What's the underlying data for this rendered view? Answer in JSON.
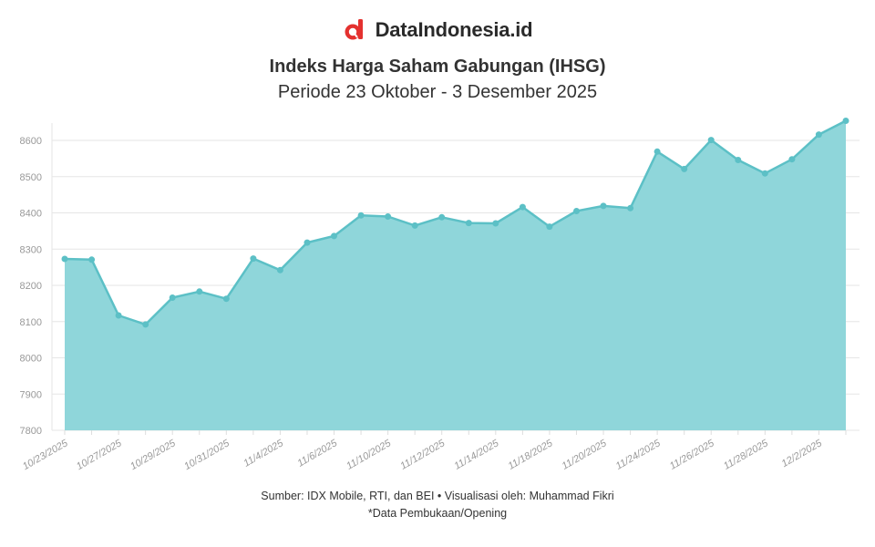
{
  "brand": {
    "name": "DataIndonesia.id",
    "logo_icon": "d-letter-magnifier-icon",
    "accent": "#e4312f"
  },
  "header": {
    "title": "Indeks Harga Saham Gabungan (IHSG)",
    "subtitle": "Periode 23 Oktober - 3 Desember 2025"
  },
  "footer": {
    "source": "Sumber: IDX Mobile, RTI, dan BEI • Visualisasi oleh: Muhammad Fikri",
    "note": "*Data Pembukaan/Opening"
  },
  "chart_data": {
    "type": "area",
    "title": "Indeks Harga Saham Gabungan (IHSG)",
    "subtitle": "Periode 23 Oktober - 3 Desember 2025",
    "xlabel": "",
    "ylabel": "",
    "ylim": [
      7800,
      8650
    ],
    "yticks": [
      7800,
      7900,
      8000,
      8100,
      8200,
      8300,
      8400,
      8500,
      8600
    ],
    "grid": true,
    "legend": "none",
    "fill_color": "#8fd6da",
    "line_color": "#5cc0c6",
    "x": [
      "10/23/2025",
      "10/24/2025",
      "10/27/2025",
      "10/28/2025",
      "10/29/2025",
      "10/30/2025",
      "10/31/2025",
      "11/3/2025",
      "11/4/2025",
      "11/5/2025",
      "11/6/2025",
      "11/7/2025",
      "11/10/2025",
      "11/11/2025",
      "11/12/2025",
      "11/13/2025",
      "11/14/2025",
      "11/17/2025",
      "11/18/2025",
      "11/19/2025",
      "11/20/2025",
      "11/21/2025",
      "11/24/2025",
      "11/25/2025",
      "11/26/2025",
      "11/27/2025",
      "11/28/2025",
      "12/1/2025",
      "12/2/2025",
      "12/3/2025"
    ],
    "xtick_labels": [
      "10/23/2025",
      "10/27/2025",
      "10/29/2025",
      "10/31/2025",
      "11/4/2025",
      "11/6/2025",
      "11/10/2025",
      "11/12/2025",
      "11/14/2025",
      "11/18/2025",
      "11/20/2025",
      "11/24/2025",
      "11/26/2025",
      "11/28/2025",
      "12/2/2025"
    ],
    "values": [
      8273,
      8271,
      8117,
      8092,
      8166,
      8183,
      8163,
      8274,
      8242,
      8318,
      8336,
      8393,
      8390,
      8365,
      8388,
      8372,
      8371,
      8416,
      8362,
      8405,
      8419,
      8413,
      8569,
      8521,
      8601,
      8546,
      8509,
      8548,
      8616,
      8654
    ]
  }
}
